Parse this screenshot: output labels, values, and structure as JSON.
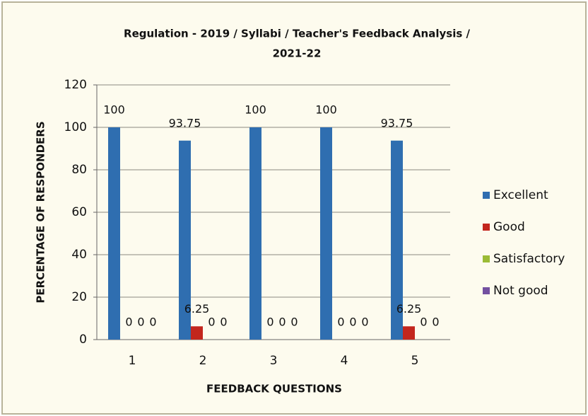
{
  "chart_data": {
    "type": "bar",
    "title": [
      "Regulation - 2019 / Syllabi / Teacher's Feedback Analysis /",
      "2021-22"
    ],
    "x_label": "FEEDBACK QUESTIONS",
    "y_label": "PERCENTAGE OF RESPONDERS",
    "categories": [
      "1",
      "2",
      "3",
      "4",
      "5"
    ],
    "series": [
      {
        "name": "Excellent",
        "color": "#2f6eb0",
        "values": [
          100,
          93.75,
          100,
          100,
          93.75
        ]
      },
      {
        "name": "Good",
        "color": "#c3261d",
        "values": [
          0,
          6.25,
          0,
          0,
          6.25
        ]
      },
      {
        "name": "Satisfactory",
        "color": "#9bbb35",
        "values": [
          0,
          0,
          0,
          0,
          0
        ]
      },
      {
        "name": "Not good",
        "color": "#7350a0",
        "values": [
          0,
          0,
          0,
          0,
          0
        ]
      }
    ],
    "ylim": [
      0,
      120
    ],
    "yticks": [
      0,
      20,
      40,
      60,
      80,
      100,
      120
    ],
    "grid": true,
    "legend": "right"
  }
}
